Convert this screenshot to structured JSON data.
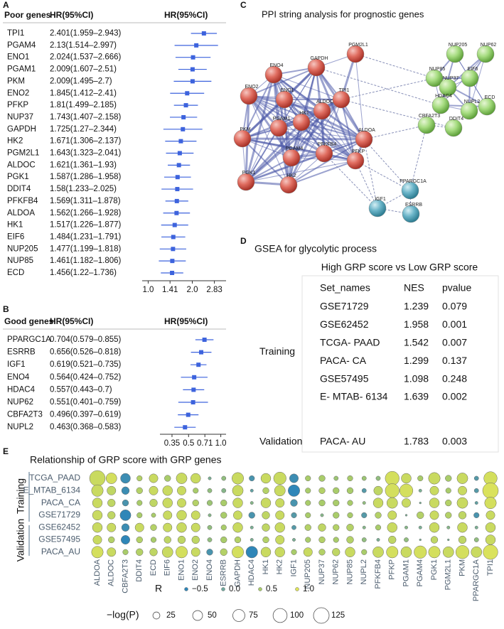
{
  "chart_data": [
    {
      "type": "forest",
      "panel": "A",
      "header": "Poor genes",
      "value_header": "HR(95%CI)",
      "axis_header": "HR(95%CI)",
      "categories": [
        "TPI1",
        "PGAM4",
        "ENO1",
        "PGAM1",
        "PKM",
        "ENO2",
        "PFKP",
        "NUP37",
        "GAPDH",
        "HK2",
        "PGM2L1",
        "ALDOC",
        "PGK1",
        "DDIT4",
        "PFKFB4",
        "ALDOA",
        "HK1",
        "EIF6",
        "NUP205",
        "NUP85",
        "ECD"
      ],
      "values": [
        2.401,
        2.13,
        2.024,
        2.009,
        2.009,
        1.845,
        1.81,
        1.743,
        1.725,
        1.671,
        1.643,
        1.621,
        1.587,
        1.58,
        1.569,
        1.562,
        1.517,
        1.484,
        1.477,
        1.461,
        1.456
      ],
      "lower": [
        1.959,
        1.514,
        1.537,
        1.607,
        1.495,
        1.412,
        1.499,
        1.407,
        1.27,
        1.306,
        1.323,
        1.361,
        1.286,
        1.233,
        1.311,
        1.266,
        1.226,
        1.231,
        1.199,
        1.182,
        1.22
      ],
      "upper": [
        2.943,
        2.997,
        2.666,
        2.51,
        2.7,
        2.41,
        2.185,
        2.158,
        2.344,
        2.137,
        2.041,
        1.93,
        1.958,
        2.025,
        1.878,
        1.928,
        1.877,
        1.791,
        1.818,
        1.806,
        1.736
      ],
      "value_labels": [
        "2.401(1.959–2.943)",
        "2.13(1.514–2.997)",
        "2.024(1.537–2.666)",
        "2.009(1.607–2.51)",
        "2.009(1.495–2.7)",
        "1.845(1.412–2.41)",
        "1.81(1.499–2.185)",
        "1.743(1.407–2.158)",
        "1.725(1.27–2.344)",
        "1.671(1.306–2.137)",
        "1.643(1.323–2.041)",
        "1.621(1.361–1.93)",
        "1.587(1.286–1.958)",
        "1.58(1.233–2.025)",
        "1.569(1.311–1.878)",
        "1.562(1.266–1.928)",
        "1.517(1.226–1.877)",
        "1.484(1.231–1.791)",
        "1.477(1.199–1.818)",
        "1.461(1.182–1.806)",
        "1.456(1.22–1.736)"
      ],
      "xscale": "log",
      "xlim": [
        0.91,
        3.4
      ],
      "xticks": [
        {
          "value": 1,
          "label": "1.0"
        },
        1.41,
        {
          "value": 2,
          "label": "2.0"
        },
        2.83
      ],
      "color": "#3d63dd"
    },
    {
      "type": "forest",
      "panel": "B",
      "header": "Good genes",
      "value_header": "HR(95%CI)",
      "axis_header": "HR(95%CI)",
      "categories": [
        "PPARGC1A",
        "ESRRB",
        "IGF1",
        "ENO4",
        "HDAC4",
        "NUP62",
        "CBFA2T3",
        "NUPL2"
      ],
      "values": [
        0.704,
        0.656,
        0.619,
        0.564,
        0.557,
        0.551,
        0.496,
        0.463
      ],
      "lower": [
        0.579,
        0.526,
        0.521,
        0.424,
        0.443,
        0.401,
        0.397,
        0.368
      ],
      "upper": [
        0.855,
        0.818,
        0.735,
        0.752,
        0.7,
        0.759,
        0.619,
        0.583
      ],
      "value_labels": [
        "0.704(0.579–0.855)",
        "0.656(0.526–0.818)",
        "0.619(0.521–0.735)",
        "0.564(0.424–0.752)",
        "0.557(0.443–0.7)",
        "0.551(0.401–0.759)",
        "0.496(0.397–0.619)",
        "0.463(0.368–0.583)"
      ],
      "xscale": "log",
      "xlim": [
        0.27,
        1.12
      ],
      "xticks": [
        0.35,
        0.5,
        0.71,
        {
          "value": 1,
          "label": "1.0"
        }
      ],
      "color": "#3d63dd"
    },
    {
      "type": "bubble",
      "panel": "E",
      "title": "Relationship of GRP score with GRP genes",
      "categories": [
        "ALDOA",
        "ALDOC",
        "CBFA2T3",
        "DDIT4",
        "ECD",
        "EIF6",
        "ENO1",
        "ENO2",
        "ENO4",
        "ESRRB",
        "GAPDH",
        "HDAC4",
        "HK1",
        "HK2",
        "IGF1",
        "NUP205",
        "NUP37",
        "NUP62",
        "NUP85",
        "NUPL2",
        "PFKFB4",
        "PFKP",
        "PGAM1",
        "PGAM4",
        "PGK1",
        "PGM2L1",
        "PKM",
        "PPARGC1A",
        "TPI1"
      ],
      "row_groups": [
        "Training",
        "Validation"
      ],
      "series": [
        {
          "name": "TCGA_PAAD",
          "values": [
            0.8,
            0.9,
            -0.4,
            0.6,
            0.8,
            0.5,
            0.8,
            0.8,
            0.1,
            0.3,
            0.8,
            -0.3,
            0.8,
            0.8,
            -0.4,
            0.5,
            0.5,
            0.4,
            0.5,
            0.4,
            0.3,
            0.9,
            0.8,
            0.5,
            0.8,
            0.5,
            0.8,
            -0.2,
            0.9
          ],
          "sizes": [
            125,
            60,
            50,
            15,
            40,
            20,
            60,
            50,
            5,
            10,
            70,
            15,
            50,
            80,
            40,
            15,
            20,
            10,
            15,
            10,
            10,
            100,
            50,
            15,
            70,
            20,
            60,
            10,
            90
          ]
        },
        {
          "name": "E_MTAB_6134",
          "values": [
            0.8,
            0.7,
            -0.4,
            0.6,
            0.8,
            0.8,
            0.8,
            0.5,
            0.3,
            0.2,
            0.8,
            -0.1,
            0.6,
            0.8,
            -0.5,
            0.5,
            0.6,
            0.5,
            0.5,
            -0.2,
            0.7,
            0.9,
            0.9,
            0.1,
            0.8,
            0.5,
            0.8,
            -0.2,
            0.95
          ],
          "sizes": [
            70,
            40,
            30,
            20,
            40,
            50,
            40,
            15,
            10,
            10,
            60,
            5,
            20,
            60,
            70,
            15,
            20,
            20,
            20,
            10,
            40,
            100,
            90,
            5,
            40,
            15,
            40,
            10,
            125
          ]
        },
        {
          "name": "PACA_CA",
          "values": [
            0.8,
            0.7,
            -0.3,
            0.5,
            0.7,
            0.8,
            0.8,
            0.6,
            0.4,
            0.5,
            0.8,
            0.2,
            0.8,
            0.8,
            -0.3,
            0.5,
            0.5,
            0.5,
            0.5,
            0.3,
            0.8,
            0.8,
            0.8,
            0.1,
            0.8,
            0.6,
            0.8,
            -0.1,
            0.9
          ],
          "sizes": [
            50,
            30,
            20,
            15,
            30,
            50,
            40,
            20,
            15,
            20,
            50,
            5,
            50,
            40,
            25,
            15,
            20,
            20,
            15,
            5,
            50,
            60,
            40,
            2,
            50,
            20,
            60,
            5,
            70
          ]
        },
        {
          "name": "GSE71729",
          "values": [
            0.8,
            0.7,
            -0.5,
            0.5,
            0.5,
            0.8,
            0.8,
            0.8,
            0.2,
            0.5,
            0.8,
            -0.3,
            0.7,
            0.8,
            -0.2,
            0.5,
            0.2,
            0.5,
            0.5,
            -0.2,
            0.6,
            0.8,
            0.1,
            0.6,
            0.8,
            0.6,
            0.7,
            -0.3,
            0.8
          ],
          "sizes": [
            50,
            30,
            60,
            15,
            10,
            40,
            50,
            40,
            5,
            20,
            40,
            20,
            30,
            40,
            15,
            15,
            5,
            20,
            15,
            15,
            20,
            40,
            2,
            25,
            40,
            20,
            30,
            15,
            40
          ]
        },
        {
          "name": "GSE62452",
          "values": [
            0.8,
            0.8,
            -0.4,
            0.8,
            0.6,
            0.8,
            0.8,
            0.8,
            0.3,
            0.5,
            0.8,
            0.1,
            0.7,
            0.8,
            -0.2,
            0.6,
            0.7,
            0.6,
            0.6,
            0.2,
            0.5,
            0.8,
            0.2,
            0.1,
            0.8,
            0.2,
            0.8,
            0.1,
            0.8
          ],
          "sizes": [
            50,
            40,
            30,
            40,
            20,
            40,
            50,
            40,
            10,
            15,
            50,
            5,
            30,
            50,
            10,
            20,
            30,
            20,
            25,
            5,
            15,
            50,
            5,
            5,
            50,
            5,
            50,
            5,
            50
          ]
        },
        {
          "name": "GSE57495",
          "values": [
            0.8,
            0.6,
            -0.5,
            0.6,
            0.5,
            0.7,
            0.7,
            0.7,
            0.3,
            0.5,
            0.6,
            0.1,
            0.6,
            0.8,
            0.1,
            0.5,
            0.6,
            0.5,
            0.6,
            0.3,
            0.1,
            0.7,
            0.3,
            0.1,
            0.7,
            0.1,
            0.7,
            0.3,
            0.8
          ],
          "sizes": [
            40,
            20,
            40,
            20,
            15,
            25,
            30,
            30,
            10,
            20,
            20,
            5,
            20,
            40,
            5,
            15,
            20,
            15,
            25,
            10,
            5,
            30,
            10,
            2,
            25,
            2,
            30,
            10,
            50
          ]
        },
        {
          "name": "PACA_AU",
          "values": [
            0.9,
            0.8,
            0.5,
            0.6,
            0.7,
            0.8,
            0.9,
            0.8,
            -0.3,
            0.6,
            0.9,
            -0.5,
            0.8,
            0.8,
            0.5,
            0.8,
            0.6,
            0.7,
            0.8,
            0.5,
            0.8,
            0.9,
            0.8,
            0.9,
            0.9,
            0.8,
            0.9,
            0.8,
            0.95
          ],
          "sizes": [
            70,
            40,
            15,
            25,
            30,
            60,
            70,
            40,
            20,
            25,
            70,
            70,
            50,
            50,
            15,
            40,
            20,
            30,
            50,
            15,
            60,
            70,
            60,
            80,
            70,
            60,
            90,
            60,
            110
          ]
        }
      ],
      "color_legend": {
        "title": "R",
        "ticks": [
          {
            "value": -0.5,
            "label": "−0.5"
          },
          {
            "value": 0,
            "label": "0.0"
          },
          0.5,
          {
            "value": 1,
            "label": "1.0"
          }
        ],
        "colors": [
          "#2f86b8",
          "#6fa89e",
          "#a9cc6a",
          "#dfe45a"
        ]
      },
      "size_legend": {
        "title": "−log(P)",
        "ticks": [
          25,
          50,
          75,
          100,
          125
        ]
      },
      "size_max": 125
    }
  ],
  "ppi": {
    "panel": "C",
    "title": "PPI string analysis for prognostic genes",
    "nodes": [
      "ENO4",
      "GAPDH",
      "PGM2L1",
      "ENO2",
      "ENO1",
      "ALDOC",
      "TPI1",
      "PKM",
      "PGAM1",
      "HK1",
      "ALDOA",
      "PGAM4",
      "PFKFB4",
      "PFKP",
      "PGK1",
      "HK2",
      "PPARGC1A",
      "IGF1",
      "ESRRB",
      "NUP205",
      "NUP62",
      "EIF6",
      "NUP85",
      "NUP37",
      "HDAC4",
      "ECD",
      "NUPL2",
      "CBFA2T3",
      "DDIT4"
    ]
  },
  "gsea": {
    "panel": "D",
    "title": "GSEA for glycolytic process",
    "subtitle": "High GRP score vs Low GRP score",
    "columns": [
      "Set_names",
      "NES",
      "pvalue"
    ],
    "groups": [
      {
        "label": "Training",
        "rows": [
          [
            "GSE71729",
            1.239,
            0.079
          ],
          [
            "GSE62452",
            1.958,
            0.001
          ],
          [
            "TCGA- PAAD",
            1.542,
            0.007
          ],
          [
            "PACA- CA",
            1.299,
            0.137
          ],
          [
            "GSE57495",
            1.098,
            0.248
          ],
          [
            "E- MTAB- 6134",
            1.639,
            0.002
          ]
        ]
      },
      {
        "label": "Validation",
        "rows": [
          [
            "PACA- AU",
            1.783,
            0.003
          ]
        ]
      }
    ],
    "highlight_color": "#e3261f"
  }
}
